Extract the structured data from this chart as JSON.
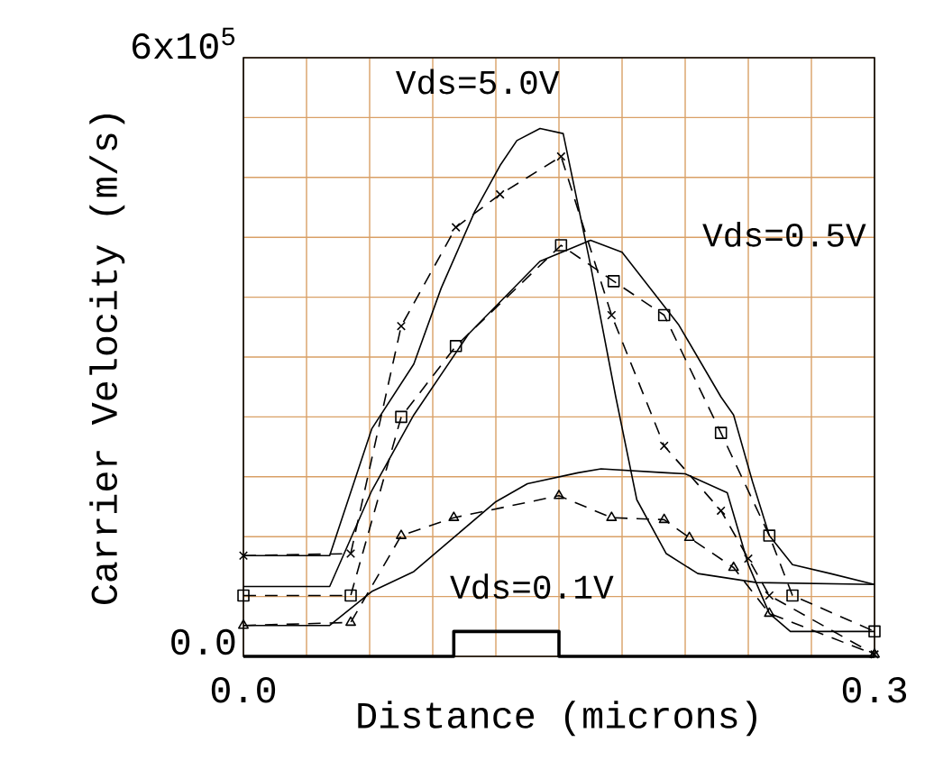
{
  "chart_data": {
    "type": "line",
    "xlabel": "Distance (microns)",
    "ylabel": "Carrier Velocity (m/s)",
    "xlim": [
      0,
      0.3
    ],
    "ylim": [
      0,
      600000
    ],
    "xticks": [
      {
        "value": 0,
        "label": "0.0"
      },
      {
        "value": 0.03,
        "label": null
      },
      {
        "value": 0.06,
        "label": null
      },
      {
        "value": 0.09,
        "label": null
      },
      {
        "value": 0.12,
        "label": null
      },
      {
        "value": 0.15,
        "label": null
      },
      {
        "value": 0.18,
        "label": null
      },
      {
        "value": 0.21,
        "label": null
      },
      {
        "value": 0.24,
        "label": null
      },
      {
        "value": 0.27,
        "label": null
      },
      {
        "value": 0.3,
        "label": "0.3"
      }
    ],
    "yticks": [
      {
        "value": 0,
        "label": "0.0"
      },
      {
        "value": 60000,
        "label": null
      },
      {
        "value": 120000,
        "label": null
      },
      {
        "value": 180000,
        "label": null
      },
      {
        "value": 240000,
        "label": null
      },
      {
        "value": 300000,
        "label": null
      },
      {
        "value": 360000,
        "label": null
      },
      {
        "value": 420000,
        "label": null
      },
      {
        "value": 480000,
        "label": null
      },
      {
        "value": 540000,
        "label": null
      },
      {
        "value": 600000,
        "label": "6x10$^{5}$"
      }
    ],
    "grid": true,
    "annotations": [
      "Vds=5.0V",
      "Vds=0.5V",
      "Vds=0.1V"
    ],
    "series": [
      {
        "color": "#000000",
        "marker": "none",
        "line_style": "solid",
        "x": [
          0,
          0.041,
          0.061,
          0.081,
          0.094,
          0.11,
          0.122,
          0.13,
          0.141,
          0.152,
          0.165,
          0.177,
          0.187,
          0.201,
          0.216,
          0.244,
          0.3
        ],
        "values": [
          101000,
          101000,
          228000,
          293000,
          369000,
          446000,
          492000,
          517000,
          529000,
          524000,
          392000,
          260000,
          157000,
          103000,
          83000,
          74000,
          72000
        ]
      },
      {
        "color": "#000000",
        "marker": "cross",
        "line_style": "dashed",
        "x": [
          0,
          0.051,
          0.075,
          0.101,
          0.122,
          0.151,
          0.175,
          0.2,
          0.227,
          0.24,
          0.25,
          0.3
        ],
        "values": [
          101000,
          103000,
          331000,
          430000,
          463000,
          501000,
          342000,
          211000,
          146000,
          98000,
          61000,
          2000
        ]
      },
      {
        "color": "#000000",
        "marker": "none",
        "line_style": "solid",
        "x": [
          0,
          0.041,
          0.061,
          0.081,
          0.107,
          0.141,
          0.165,
          0.18,
          0.207,
          0.227,
          0.233,
          0.242,
          0.25,
          0.261,
          0.279,
          0.3
        ],
        "values": [
          70000,
          70000,
          166000,
          242000,
          323000,
          396000,
          417000,
          405000,
          332000,
          260000,
          242000,
          175000,
          121000,
          92000,
          83000,
          72000
        ]
      },
      {
        "color": "#000000",
        "marker": "square",
        "line_style": "dashed",
        "x": [
          0,
          0.051,
          0.075,
          0.101,
          0.151,
          0.176,
          0.2,
          0.227,
          0.25,
          0.261,
          0.3
        ],
        "values": [
          61000,
          61000,
          240000,
          311000,
          412000,
          376000,
          342000,
          224000,
          121000,
          61000,
          25000
        ]
      },
      {
        "color": "#000000",
        "marker": "none",
        "line_style": "solid",
        "x": [
          0,
          0.041,
          0.061,
          0.081,
          0.101,
          0.12,
          0.135,
          0.159,
          0.17,
          0.201,
          0.21,
          0.23,
          0.24,
          0.25,
          0.26,
          0.3
        ],
        "values": [
          31000,
          31000,
          65000,
          85000,
          121000,
          155000,
          173000,
          184000,
          188000,
          184000,
          183000,
          164000,
          92000,
          43000,
          25000,
          25000
        ]
      },
      {
        "color": "#000000",
        "marker": "triangle",
        "line_style": "dashed",
        "x": [
          0,
          0.051,
          0.075,
          0.1,
          0.15,
          0.175,
          0.2,
          0.212,
          0.233,
          0.25,
          0.3
        ],
        "values": [
          31000,
          34000,
          121000,
          139000,
          161000,
          139000,
          137000,
          119000,
          89000,
          43000,
          2000
        ]
      },
      {
        "color": "#000000",
        "marker": "none",
        "line_style": "solid",
        "x": [
          0,
          0.1,
          0.1,
          0.15,
          0.15,
          0.3
        ],
        "values": [
          0,
          0,
          25000,
          25000,
          0,
          0
        ]
      }
    ]
  }
}
